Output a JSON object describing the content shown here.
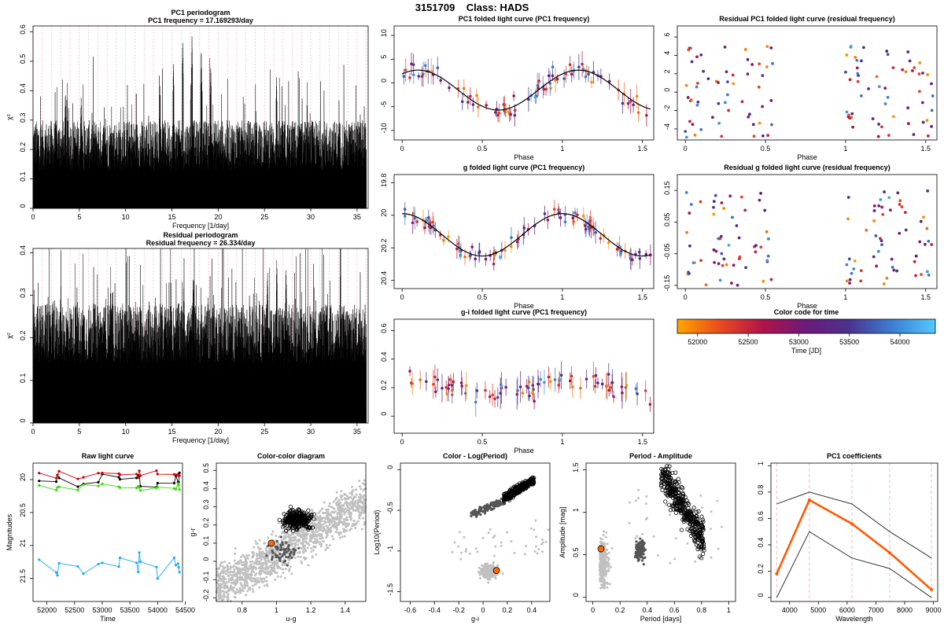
{
  "header": {
    "star_id": "3151709",
    "class_label": "Class: HADS"
  },
  "colors": {
    "periodogram": "#000000",
    "freq_marker": "#f2a3b8",
    "model_curve": "#000000",
    "time_cmap": [
      "#ffa500",
      "#e84a20",
      "#b0124c",
      "#6a1b7a",
      "#4b3290",
      "#3a7fd0",
      "#56c8ff"
    ],
    "raw_g": "#000000",
    "raw_r": "#cc0000",
    "raw_i": "#33dd00",
    "raw_u": "#1eaaee",
    "ref_points": "#c0c0c0",
    "class_points": "#555555",
    "target": "#ff6a00",
    "pc1_mean": "#ff5a00",
    "pc1_band": "#333333",
    "wavelength_marker": "#f2b6c4"
  },
  "chart_data": [
    {
      "id": "pc1-periodogram",
      "type": "line",
      "title": "PC1 periodogram",
      "subtitle": "PC1 frequency = 17.169293/day",
      "xlabel": "Frequency [1/day]",
      "ylabel": "χ²",
      "xlim": [
        0,
        36.2
      ],
      "ylim": [
        0,
        0.62
      ],
      "xticks": [
        0,
        5,
        10,
        15,
        20,
        25,
        30,
        35
      ],
      "yticks": [
        0.0,
        0.1,
        0.2,
        0.3,
        0.4,
        0.5,
        0.6
      ],
      "markers_every": 1,
      "grid": false,
      "peaks": [
        {
          "x": 17.17,
          "y": 0.59
        },
        {
          "x": 16.17,
          "y": 0.58
        },
        {
          "x": 18.17,
          "y": 0.55
        },
        {
          "x": 15.17,
          "y": 0.5
        },
        {
          "x": 19.2,
          "y": 0.49
        },
        {
          "x": 3.5,
          "y": 0.4
        },
        {
          "x": 26.3,
          "y": 0.45
        },
        {
          "x": 5.2,
          "y": 0.38
        }
      ]
    },
    {
      "id": "residual-periodogram",
      "type": "line",
      "title": "Residual periodogram",
      "subtitle": "Residual frequency = 26.334/day",
      "xlabel": "Frequency [1/day]",
      "ylabel": "χ²",
      "xlim": [
        0,
        36.2
      ],
      "ylim": [
        0,
        0.41
      ],
      "xticks": [
        0,
        5,
        10,
        15,
        20,
        25,
        30,
        35
      ],
      "yticks": [
        0.0,
        0.1,
        0.2,
        0.3,
        0.4
      ],
      "markers_every": 1,
      "grid": false,
      "peaks": [
        {
          "x": 26.33,
          "y": 0.39
        },
        {
          "x": 25.33,
          "y": 0.36
        },
        {
          "x": 27.33,
          "y": 0.37
        },
        {
          "x": 17.3,
          "y": 0.34
        },
        {
          "x": 3.0,
          "y": 0.33
        },
        {
          "x": 16.3,
          "y": 0.33
        }
      ]
    },
    {
      "id": "pc1-folded",
      "type": "scatter",
      "title": "PC1 folded light curve (PC1 frequency)",
      "xlabel": "Phase",
      "ylabel": "",
      "xlim": [
        -0.05,
        1.57
      ],
      "ylim": [
        -12,
        12
      ],
      "xticks": [
        0.0,
        0.5,
        1.0,
        1.5
      ],
      "yticks": [
        10,
        5,
        0,
        -5,
        -10
      ],
      "model": {
        "mean": -1.5,
        "amp": 4.2,
        "phase_max": 0.1
      },
      "errorbars": true
    },
    {
      "id": "g-folded",
      "type": "scatter",
      "title": "g folded light curve (PC1 frequency)",
      "xlabel": "Phase",
      "ylabel": "",
      "xlim": [
        -0.05,
        1.57
      ],
      "ylim": [
        20.45,
        19.75
      ],
      "xticks": [
        0.0,
        0.5,
        1.0,
        1.5
      ],
      "yticks": [
        19.8,
        20.0,
        20.2,
        20.4
      ],
      "model": {
        "mean": 20.12,
        "amp": 0.13,
        "phase_max": 0.5
      },
      "errorbars": true
    },
    {
      "id": "gi-folded",
      "type": "scatter",
      "title": "g-i folded light curve (PC1 frequency)",
      "xlabel": "Phase",
      "ylabel": "",
      "xlim": [
        -0.05,
        1.57
      ],
      "ylim": [
        -0.12,
        0.68
      ],
      "xticks": [
        0.0,
        0.5,
        1.0,
        1.5
      ],
      "yticks": [
        0.0,
        0.2,
        0.4,
        0.6
      ],
      "model": {
        "mean": 0.2,
        "amp": 0.05,
        "phase_max": 0.1
      },
      "errorbars": true
    },
    {
      "id": "residual-pc1-folded",
      "type": "scatter",
      "title": "Residual PC1 folded light curve (residual frequency)",
      "xlabel": "Phase",
      "ylabel": "",
      "xlim": [
        -0.05,
        1.57
      ],
      "ylim": [
        -5.2,
        7.2
      ],
      "xticks": [
        0.0,
        0.5,
        1.0,
        1.5
      ],
      "yticks": [
        6,
        4,
        2,
        0,
        -2,
        -4
      ],
      "errorbars": false
    },
    {
      "id": "residual-g-folded",
      "type": "scatter",
      "title": "Residual g folded light curve (residual frequency)",
      "xlabel": "Phase",
      "ylabel": "",
      "xlim": [
        -0.05,
        1.57
      ],
      "ylim": [
        -0.16,
        0.2
      ],
      "xticks": [
        0.0,
        0.5,
        1.0,
        1.5
      ],
      "yticks": [
        0.15,
        0.05,
        -0.05,
        -0.15
      ],
      "errorbars": false
    },
    {
      "id": "time-colorbar",
      "type": "heatmap",
      "title": "Color code for time",
      "xlabel": "Time [JD]",
      "xlim": [
        51800,
        54350
      ],
      "xticks": [
        52000,
        52500,
        53000,
        53500,
        54000
      ]
    },
    {
      "id": "raw-light-curve",
      "type": "line",
      "title": "Raw light curve",
      "xlabel": "Time",
      "ylabel": "Magnitudes",
      "xlim": [
        51750,
        54450
      ],
      "ylim": [
        21.85,
        19.75
      ],
      "xticks": [
        52000,
        52500,
        53000,
        53500,
        54000,
        54500
      ],
      "yticks": [
        20.0,
        20.5,
        21.0,
        21.5
      ],
      "series": [
        {
          "band": "g",
          "mean": 20.02,
          "jitter": 0.12
        },
        {
          "band": "r",
          "mean": 19.92,
          "jitter": 0.06
        },
        {
          "band": "i",
          "mean": 20.12,
          "jitter": 0.06
        },
        {
          "band": "u",
          "mean": 21.3,
          "jitter": 0.2
        }
      ]
    },
    {
      "id": "color-color",
      "type": "scatter",
      "title": "Color-color diagram",
      "xlabel": "u-g",
      "ylabel": "g-r",
      "xlim": [
        0.65,
        1.52
      ],
      "ylim": [
        -0.22,
        0.54
      ],
      "xticks": [
        0.8,
        1.0,
        1.2,
        1.4
      ],
      "yticks": [
        -0.2,
        -0.1,
        0.0,
        0.1,
        0.2,
        0.3,
        0.4,
        0.5
      ],
      "target": {
        "x": 0.97,
        "y": 0.1
      }
    },
    {
      "id": "color-logperiod",
      "type": "scatter",
      "title": "Color - Log(Period)",
      "xlabel": "g-i",
      "ylabel": "Log10(Period)",
      "xlim": [
        -0.68,
        0.55
      ],
      "ylim": [
        -1.62,
        0.08
      ],
      "xticks": [
        -0.6,
        -0.4,
        -0.2,
        0.0,
        0.2,
        0.4
      ],
      "yticks": [
        0.0,
        -0.5,
        -1.0,
        -1.5
      ],
      "target": {
        "x": 0.11,
        "y": -1.24
      }
    },
    {
      "id": "period-amplitude",
      "type": "scatter",
      "title": "Period - Amplitude",
      "xlabel": "Period [days]",
      "ylabel": "Amplitude [mag]",
      "xlim": [
        -0.05,
        1.05
      ],
      "ylim": [
        -0.05,
        1.58
      ],
      "xticks": [
        0.0,
        0.2,
        0.4,
        0.6,
        0.8,
        1.0
      ],
      "yticks": [
        0.0,
        0.5,
        1.0,
        1.5
      ],
      "target": {
        "x": 0.06,
        "y": 0.57
      }
    },
    {
      "id": "pc1-coefficients",
      "type": "line",
      "title": "PC1 coefficients",
      "xlabel": "Wavelength",
      "ylabel": "",
      "xlim": [
        3350,
        9150
      ],
      "ylim": [
        -0.03,
        1.02
      ],
      "xticks": [
        4000,
        5000,
        6000,
        7000,
        8000,
        9000
      ],
      "yticks": [
        0.0,
        0.2,
        0.4,
        0.6,
        0.8,
        1.0
      ],
      "band_wavelengths": [
        3551,
        4686,
        6166,
        7480,
        8932
      ],
      "series": [
        {
          "role": "mean",
          "x": [
            3551,
            4686,
            6166,
            7480,
            8932
          ],
          "y": [
            0.18,
            0.74,
            0.56,
            0.34,
            0.06
          ]
        },
        {
          "role": "upper",
          "x": [
            3551,
            4686,
            6166,
            7480,
            8932
          ],
          "y": [
            0.71,
            0.8,
            0.71,
            0.5,
            0.3
          ]
        },
        {
          "role": "lower",
          "x": [
            3551,
            4686,
            6166,
            7480,
            8932
          ],
          "y": [
            0.0,
            0.5,
            0.3,
            0.22,
            0.0
          ]
        }
      ]
    }
  ]
}
